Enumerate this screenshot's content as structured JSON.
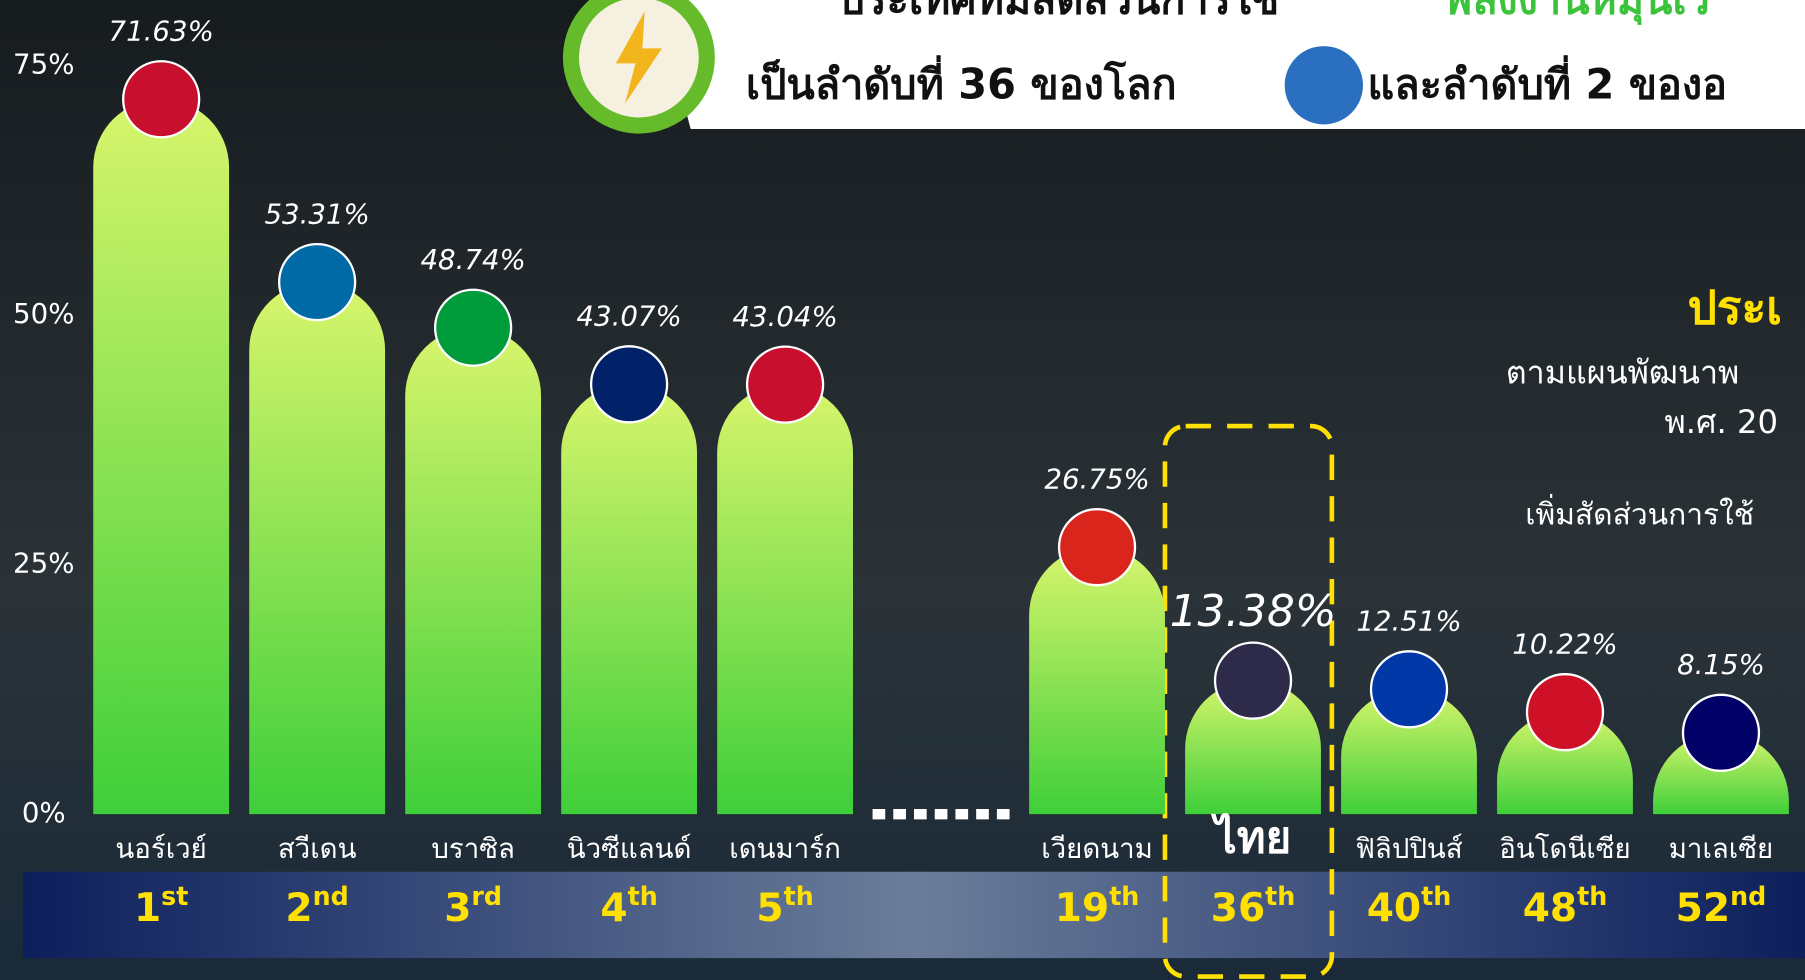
{
  "chart_data": {
    "type": "bar",
    "title": "ประเทศที่มีสัดส่วนการใช้",
    "title_highlight": "พลังงานหมุนเวี",
    "subtitle": "เป็นลำดับที่ 36 ของโลก",
    "subtitle_2": "และลำดับที่ 2 ของอ",
    "side_texts": [
      "ประเ",
      "ตามแผนพัฒนาพ",
      "พ.ศ. 20",
      "เพิ่มสัดส่วนการใช้"
    ],
    "categories": [
      "นอร์เวย์",
      "สวีเดน",
      "บราซิล",
      "นิวซีแลนด์",
      "เดนมาร์ก",
      "เวียดนาม",
      "ไทย",
      "ฟิลิปปินส์",
      "อินโดนีเซีย",
      "มาเลเซีย"
    ],
    "values": [
      71.63,
      53.31,
      48.74,
      43.07,
      43.04,
      26.75,
      13.38,
      12.51,
      10.22,
      8.15
    ],
    "value_labels": [
      "71.63%",
      "53.31%",
      "48.74%",
      "43.07%",
      "43.04%",
      "26.75%",
      "13.38%",
      "12.51%",
      "10.22%",
      "8.15%"
    ],
    "ranks": [
      [
        "1",
        "st"
      ],
      [
        "2",
        "nd"
      ],
      [
        "3",
        "rd"
      ],
      [
        "4",
        "th"
      ],
      [
        "5",
        "th"
      ],
      [
        "19",
        "th"
      ],
      [
        "36",
        "th"
      ],
      [
        "40",
        "th"
      ],
      [
        "48",
        "th"
      ],
      [
        "52",
        "nd"
      ]
    ],
    "highlight_index": 6,
    "color": "#3fcf3a",
    "ylim": [
      0,
      75
    ],
    "yticks": [
      {
        "value": 0,
        "label": "0%"
      },
      {
        "value": 25,
        "label": "25%"
      },
      {
        "value": 50,
        "label": "50%"
      },
      {
        "value": 75,
        "label": "75%"
      }
    ]
  }
}
